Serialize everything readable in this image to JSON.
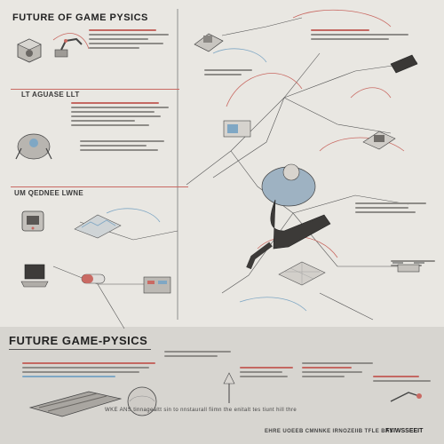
{
  "header": {
    "title": "FUTURE OF  GAME PYSICS"
  },
  "section_labels": {
    "label_a": "LT AGUASE LLT",
    "label_b": "UM QEDNEE LWNE"
  },
  "lower": {
    "title": "FUTURE  GAME-PYSICS",
    "footer_left": "WKE ANS  tinnagealtt  sin  to  nnstaurall  fiimn  the  enitalt  tes  tiunt  hill  thre",
    "footer_right": "EHRE  UOEEB  CMNNKE  IRNOZEIIB  TFLE  BAS",
    "footer_code": "FYIWSSEEIT"
  },
  "palette": {
    "background": "#e9e7e2",
    "lower_band": "#d7d5d0",
    "accent_red": "#c96a63",
    "accent_blue": "#7fa7c4",
    "ink": "#2a2a2a"
  },
  "icons": [
    "robot-arm-icon",
    "cube-device-icon",
    "mech-figure-icon",
    "console-icon",
    "laptop-icon",
    "falling-figure-icon",
    "pill-capsule-icon",
    "sphere-icon",
    "panel-icon"
  ]
}
